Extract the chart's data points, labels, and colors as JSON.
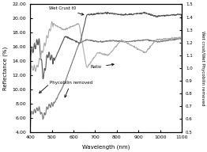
{
  "title": "",
  "xlabel": "Wavelength (nm)",
  "ylabel_left": "Reflectance (%)",
  "ylabel_right": "Wet crust/Wet Phycobilin removed",
  "xlim": [
    400,
    1100
  ],
  "ylim_left": [
    4.0,
    22.0
  ],
  "ylim_right": [
    0.5,
    1.5
  ],
  "yticks_left": [
    4.0,
    6.0,
    8.0,
    10.0,
    12.0,
    14.0,
    16.0,
    18.0,
    20.0,
    22.0
  ],
  "yticks_right": [
    0.5,
    0.6,
    0.7,
    0.8,
    0.9,
    1.0,
    1.1,
    1.2,
    1.3,
    1.4,
    1.5
  ],
  "xticks": [
    400,
    500,
    600,
    700,
    800,
    900,
    1000,
    1100
  ],
  "line_color_wet": "#555555",
  "line_color_phyco": "#777777",
  "line_color_ratio": "#aaaaaa",
  "background_color": "#ffffff"
}
